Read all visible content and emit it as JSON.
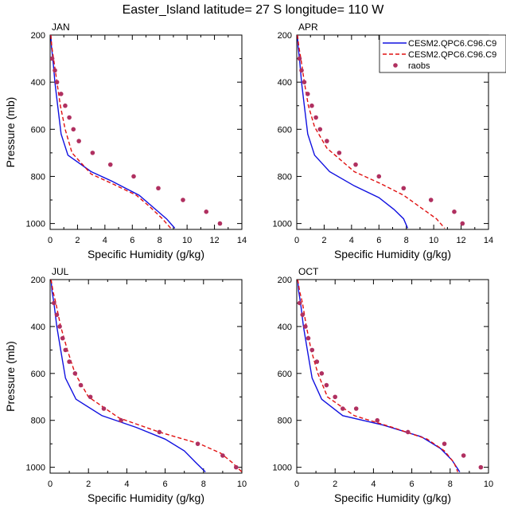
{
  "figure": {
    "title": "Easter_Island  latitude= 27 S longitude= 110 W"
  },
  "legend": {
    "placement": "top-right of APR panel",
    "entries": [
      {
        "label": "CESM2.QPC6.C96.C9",
        "style": "solid",
        "color": "#1010e0"
      },
      {
        "label": "CESM2.QPC6.C96.C9",
        "style": "dashed",
        "color": "#e01010"
      },
      {
        "label": "raobs",
        "style": "dots",
        "color": "#b03060"
      }
    ]
  },
  "colors": {
    "model_solid": "#1010e0",
    "model_dashed": "#e01010",
    "raobs": "#b03060"
  },
  "chart_data": [
    {
      "type": "line",
      "panel_label": "JAN",
      "xlabel": "Specific Humidity (g/kg)",
      "ylabel": "Pressure (mb)",
      "xlim": [
        0,
        14
      ],
      "ylim": [
        1025,
        200
      ],
      "xticks": [
        0,
        2,
        4,
        6,
        8,
        10,
        12,
        14
      ],
      "yticks": [
        200,
        400,
        600,
        800,
        1000
      ],
      "series": [
        {
          "name": "CESM2.QPC6.C96.C9",
          "style": "solid",
          "color": "#1010e0",
          "points": [
            [
              0.05,
              200
            ],
            [
              0.1,
              250
            ],
            [
              0.2,
              300
            ],
            [
              0.35,
              400
            ],
            [
              0.55,
              500
            ],
            [
              0.8,
              620
            ],
            [
              1.3,
              710
            ],
            [
              3,
              780
            ],
            [
              4.5,
              820
            ],
            [
              6.5,
              880
            ],
            [
              7.5,
              930
            ],
            [
              8.5,
              980
            ],
            [
              9.1,
              1020
            ]
          ]
        },
        {
          "name": "CESM2.QPC6.C96.C9",
          "style": "dashed",
          "color": "#e01010",
          "points": [
            [
              0.05,
              200
            ],
            [
              0.12,
              250
            ],
            [
              0.25,
              300
            ],
            [
              0.5,
              400
            ],
            [
              0.75,
              500
            ],
            [
              1.1,
              600
            ],
            [
              1.6,
              700
            ],
            [
              3,
              790
            ],
            [
              4.5,
              830
            ],
            [
              6.3,
              880
            ],
            [
              7.3,
              930
            ],
            [
              8.2,
              980
            ],
            [
              8.8,
              1020
            ]
          ]
        },
        {
          "name": "raobs",
          "style": "dots",
          "color": "#b03060",
          "points": [
            [
              0.15,
              300
            ],
            [
              0.35,
              350
            ],
            [
              0.5,
              400
            ],
            [
              0.8,
              450
            ],
            [
              1.1,
              500
            ],
            [
              1.4,
              550
            ],
            [
              1.7,
              600
            ],
            [
              2.1,
              650
            ],
            [
              3.1,
              700
            ],
            [
              4.4,
              750
            ],
            [
              6.1,
              800
            ],
            [
              7.9,
              850
            ],
            [
              9.7,
              900
            ],
            [
              11.4,
              950
            ],
            [
              12.4,
              1000
            ]
          ]
        }
      ]
    },
    {
      "type": "line",
      "panel_label": "APR",
      "xlabel": "Specific Humidity (g/kg)",
      "ylabel": "",
      "xlim": [
        0,
        14
      ],
      "ylim": [
        1025,
        200
      ],
      "xticks": [
        0,
        2,
        4,
        6,
        8,
        10,
        12,
        14
      ],
      "yticks": [
        200,
        400,
        600,
        800,
        1000
      ],
      "series": [
        {
          "name": "CESM2.QPC6.C96.C9",
          "style": "solid",
          "color": "#1010e0",
          "points": [
            [
              0.05,
              200
            ],
            [
              0.1,
              250
            ],
            [
              0.2,
              300
            ],
            [
              0.35,
              400
            ],
            [
              0.55,
              500
            ],
            [
              0.8,
              620
            ],
            [
              1.3,
              710
            ],
            [
              2.4,
              780
            ],
            [
              4.2,
              840
            ],
            [
              6,
              890
            ],
            [
              7.1,
              940
            ],
            [
              7.8,
              980
            ],
            [
              8.1,
              1020
            ]
          ]
        },
        {
          "name": "CESM2.QPC6.C96.C9",
          "style": "dashed",
          "color": "#e01010",
          "points": [
            [
              0.05,
              200
            ],
            [
              0.15,
              250
            ],
            [
              0.3,
              300
            ],
            [
              0.55,
              400
            ],
            [
              0.85,
              500
            ],
            [
              1.3,
              590
            ],
            [
              2.2,
              680
            ],
            [
              4.2,
              780
            ],
            [
              6.1,
              830
            ],
            [
              7.8,
              880
            ],
            [
              9,
              930
            ],
            [
              10.2,
              980
            ],
            [
              10.8,
              1020
            ]
          ]
        },
        {
          "name": "raobs",
          "style": "dots",
          "color": "#b03060",
          "points": [
            [
              0.2,
              300
            ],
            [
              0.35,
              350
            ],
            [
              0.55,
              400
            ],
            [
              0.8,
              450
            ],
            [
              1.1,
              500
            ],
            [
              1.4,
              550
            ],
            [
              1.7,
              600
            ],
            [
              2.2,
              650
            ],
            [
              3.1,
              700
            ],
            [
              4.3,
              750
            ],
            [
              6,
              800
            ],
            [
              7.8,
              850
            ],
            [
              9.8,
              900
            ],
            [
              11.5,
              950
            ],
            [
              12.1,
              1000
            ]
          ]
        }
      ]
    },
    {
      "type": "line",
      "panel_label": "JUL",
      "xlabel": "Specific Humidity (g/kg)",
      "ylabel": "Pressure (mb)",
      "xlim": [
        0,
        10
      ],
      "ylim": [
        1025,
        200
      ],
      "xticks": [
        0,
        2,
        4,
        6,
        8,
        10
      ],
      "yticks": [
        200,
        400,
        600,
        800,
        1000
      ],
      "series": [
        {
          "name": "CESM2.QPC6.C96.C9",
          "style": "solid",
          "color": "#1010e0",
          "points": [
            [
              0.05,
              200
            ],
            [
              0.1,
              250
            ],
            [
              0.2,
              300
            ],
            [
              0.35,
              400
            ],
            [
              0.55,
              500
            ],
            [
              0.8,
              620
            ],
            [
              1.35,
              710
            ],
            [
              2.7,
              780
            ],
            [
              4.5,
              830
            ],
            [
              6,
              880
            ],
            [
              7,
              930
            ],
            [
              7.6,
              980
            ],
            [
              8.1,
              1020
            ]
          ]
        },
        {
          "name": "CESM2.QPC6.C96.C9",
          "style": "dashed",
          "color": "#e01010",
          "points": [
            [
              0.05,
              200
            ],
            [
              0.15,
              250
            ],
            [
              0.3,
              300
            ],
            [
              0.55,
              400
            ],
            [
              0.9,
              500
            ],
            [
              1.3,
              600
            ],
            [
              2,
              700
            ],
            [
              3.6,
              790
            ],
            [
              5.7,
              850
            ],
            [
              7.8,
              900
            ],
            [
              8.9,
              940
            ],
            [
              9.5,
              980
            ],
            [
              10,
              1020
            ]
          ]
        },
        {
          "name": "raobs",
          "style": "dots",
          "color": "#b03060",
          "points": [
            [
              0.2,
              300
            ],
            [
              0.35,
              350
            ],
            [
              0.5,
              400
            ],
            [
              0.65,
              450
            ],
            [
              0.8,
              500
            ],
            [
              1,
              550
            ],
            [
              1.3,
              600
            ],
            [
              1.6,
              650
            ],
            [
              2.1,
              700
            ],
            [
              2.8,
              750
            ],
            [
              3.7,
              800
            ],
            [
              5.7,
              850
            ],
            [
              7.7,
              900
            ],
            [
              9,
              950
            ],
            [
              9.7,
              1000
            ]
          ]
        }
      ]
    },
    {
      "type": "line",
      "panel_label": "OCT",
      "xlabel": "Specific Humidity (g/kg)",
      "ylabel": "",
      "xlim": [
        0,
        10
      ],
      "ylim": [
        1025,
        200
      ],
      "xticks": [
        0,
        2,
        4,
        6,
        8,
        10
      ],
      "yticks": [
        200,
        400,
        600,
        800,
        1000
      ],
      "series": [
        {
          "name": "CESM2.QPC6.C96.C9",
          "style": "solid",
          "color": "#1010e0",
          "points": [
            [
              0.05,
              200
            ],
            [
              0.1,
              250
            ],
            [
              0.2,
              300
            ],
            [
              0.35,
              400
            ],
            [
              0.55,
              500
            ],
            [
              0.8,
              620
            ],
            [
              1.3,
              710
            ],
            [
              2.4,
              780
            ],
            [
              4.5,
              820
            ],
            [
              6.5,
              870
            ],
            [
              7.5,
              920
            ],
            [
              8.1,
              970
            ],
            [
              8.5,
              1020
            ]
          ]
        },
        {
          "name": "CESM2.QPC6.C96.C9",
          "style": "dashed",
          "color": "#e01010",
          "points": [
            [
              0.05,
              200
            ],
            [
              0.15,
              250
            ],
            [
              0.3,
              300
            ],
            [
              0.5,
              400
            ],
            [
              0.75,
              500
            ],
            [
              1.1,
              600
            ],
            [
              1.6,
              700
            ],
            [
              3,
              780
            ],
            [
              5,
              830
            ],
            [
              6.8,
              880
            ],
            [
              7.7,
              930
            ],
            [
              8.2,
              980
            ],
            [
              8.4,
              1020
            ]
          ]
        },
        {
          "name": "raobs",
          "style": "dots",
          "color": "#b03060",
          "points": [
            [
              0.15,
              300
            ],
            [
              0.3,
              350
            ],
            [
              0.45,
              400
            ],
            [
              0.6,
              450
            ],
            [
              0.8,
              500
            ],
            [
              1.05,
              550
            ],
            [
              1.3,
              600
            ],
            [
              1.55,
              650
            ],
            [
              2,
              700
            ],
            [
              2.4,
              750
            ],
            [
              3.1,
              750
            ],
            [
              4.2,
              800
            ],
            [
              5.8,
              850
            ],
            [
              7.7,
              900
            ],
            [
              8.7,
              950
            ],
            [
              9.6,
              1000
            ]
          ]
        }
      ]
    }
  ]
}
